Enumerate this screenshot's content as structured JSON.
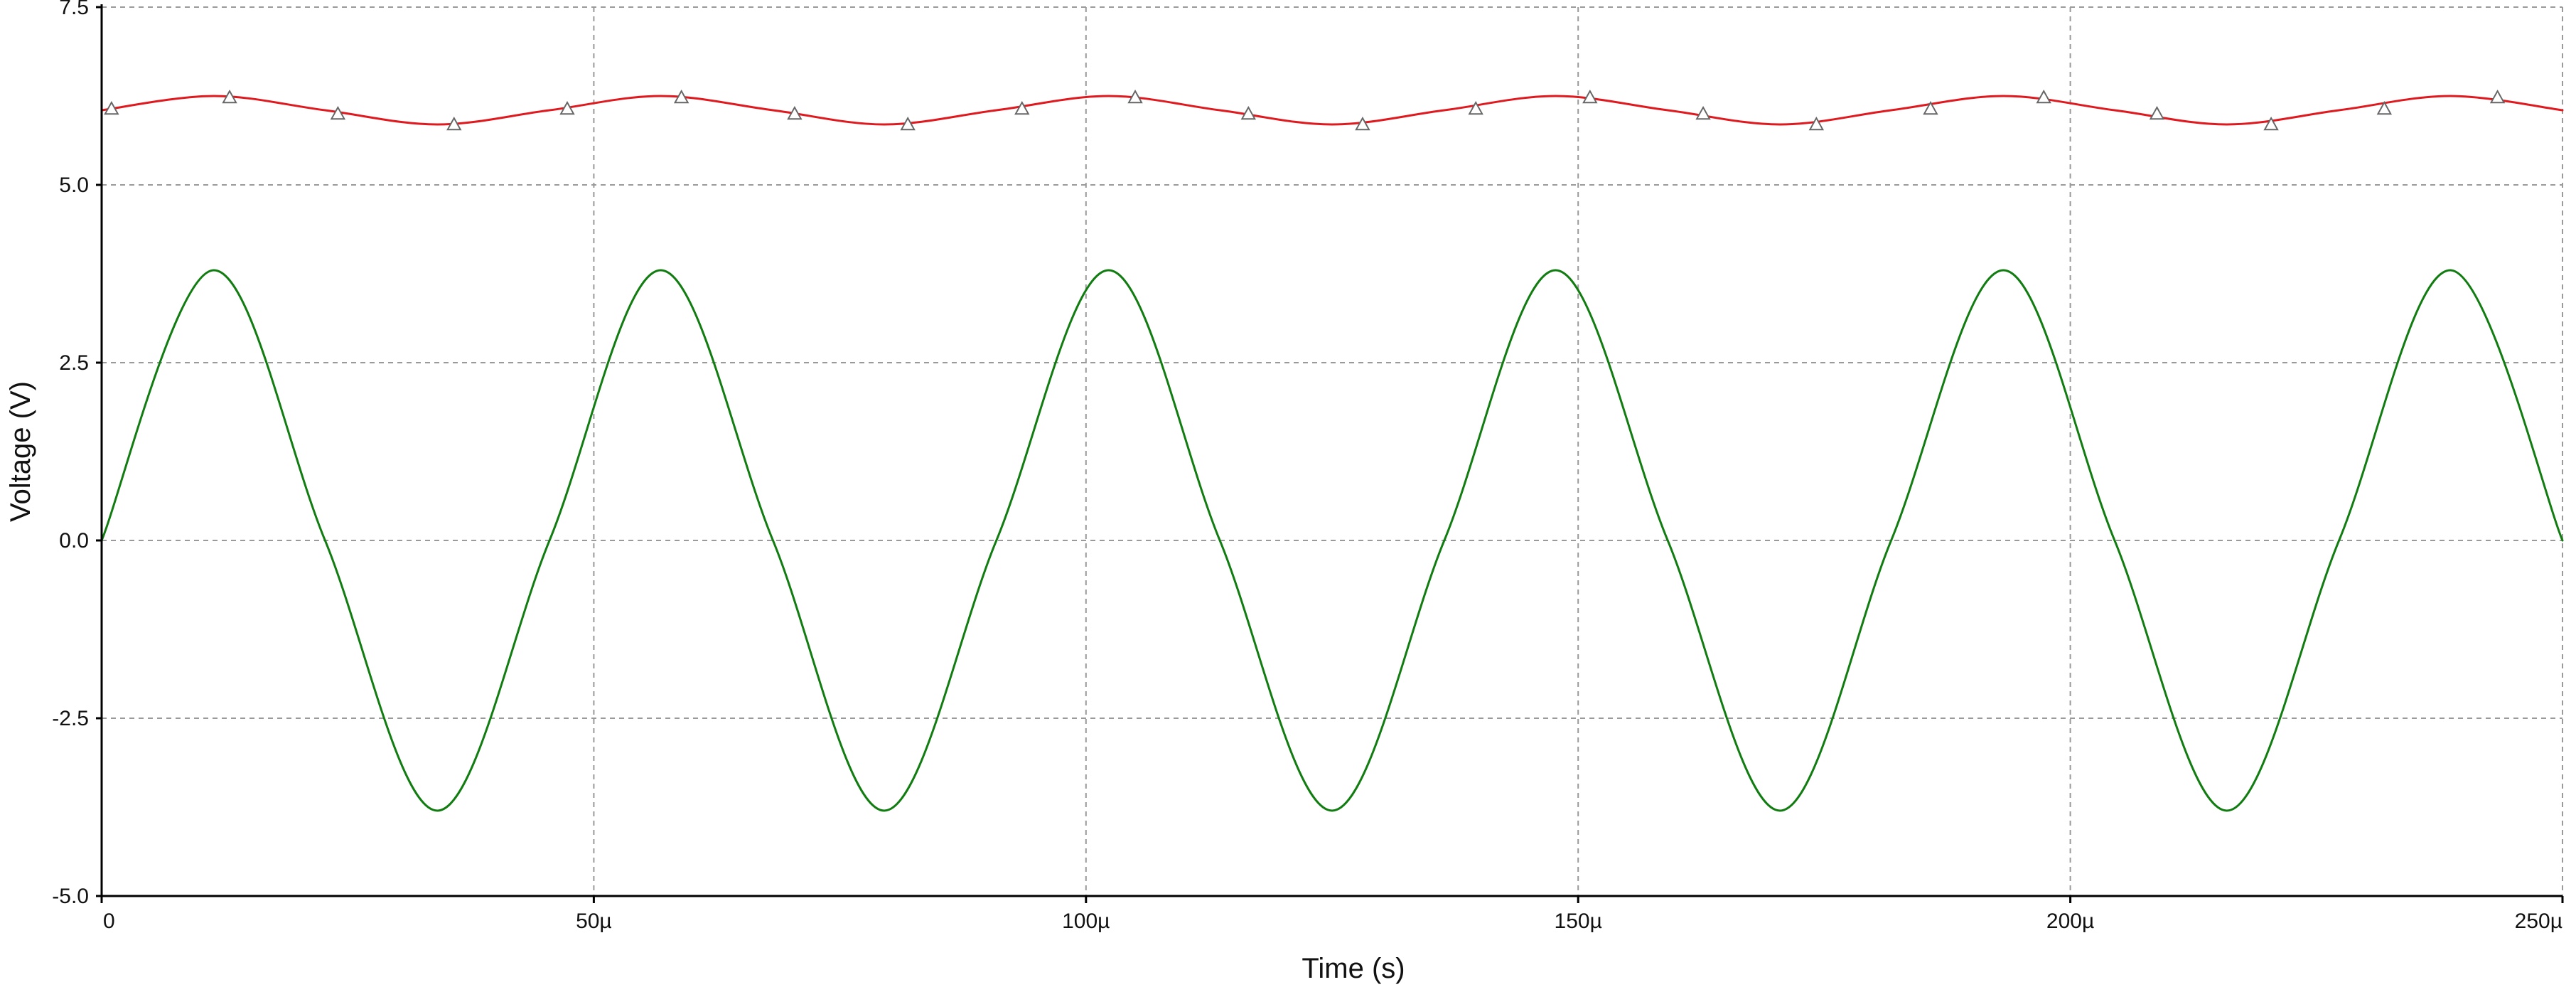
{
  "chart_data": {
    "type": "line",
    "title": "",
    "xlabel": "Time (s)",
    "ylabel": "Voltage (V)",
    "xlim": [
      0,
      0.00025
    ],
    "ylim": [
      -5.0,
      7.5
    ],
    "grid": true,
    "x_ticks": [
      {
        "value": 0,
        "label": "0"
      },
      {
        "value": 5e-05,
        "label": "50µ"
      },
      {
        "value": 0.0001,
        "label": "100µ"
      },
      {
        "value": 0.00015,
        "label": "150µ"
      },
      {
        "value": 0.0002,
        "label": "200µ"
      },
      {
        "value": 0.00025,
        "label": "250µ"
      }
    ],
    "y_ticks": [
      {
        "value": 7.5,
        "label": "7.5"
      },
      {
        "value": 5.0,
        "label": "5.0"
      },
      {
        "value": 2.5,
        "label": "2.5"
      },
      {
        "value": 0.0,
        "label": "0.0"
      },
      {
        "value": -2.5,
        "label": "-2.5"
      },
      {
        "value": -5.0,
        "label": "-5.0"
      }
    ],
    "series": [
      {
        "color": "#e0191f",
        "marker": "triangle",
        "x": [
          0,
          1.14e-05,
          2.27e-05,
          3.41e-05,
          4.55e-05,
          5.68e-05,
          6.82e-05,
          7.95e-05,
          9.09e-05,
          0.0001023,
          0.0001136,
          0.000125,
          0.0001364,
          0.0001477,
          0.0001591,
          0.0001705,
          0.0001818,
          0.0001932,
          0.0002045,
          0.0002159,
          0.0002273,
          0.0002386,
          0.00025
        ],
        "y": [
          6.05,
          6.25,
          6.05,
          5.85,
          6.05,
          6.25,
          6.05,
          5.85,
          6.05,
          6.25,
          6.05,
          5.85,
          6.05,
          6.25,
          6.05,
          5.85,
          6.05,
          6.25,
          6.05,
          5.85,
          6.05,
          6.25,
          6.05
        ],
        "markers": [
          {
            "x": 1e-06,
            "y": 6.07
          },
          {
            "x": 1.3e-05,
            "y": 6.23
          },
          {
            "x": 2.4e-05,
            "y": 6.0
          },
          {
            "x": 3.58e-05,
            "y": 5.85
          },
          {
            "x": 4.73e-05,
            "y": 6.07
          },
          {
            "x": 5.89e-05,
            "y": 6.23
          },
          {
            "x": 7.04e-05,
            "y": 6.0
          },
          {
            "x": 8.19e-05,
            "y": 5.85
          },
          {
            "x": 9.35e-05,
            "y": 6.07
          },
          {
            "x": 0.000105,
            "y": 6.23
          },
          {
            "x": 0.0001165,
            "y": 6.0
          },
          {
            "x": 0.0001281,
            "y": 5.85
          },
          {
            "x": 0.0001396,
            "y": 6.07
          },
          {
            "x": 0.0001512,
            "y": 6.23
          },
          {
            "x": 0.0001627,
            "y": 6.0
          },
          {
            "x": 0.0001742,
            "y": 5.85
          },
          {
            "x": 0.0001858,
            "y": 6.07
          },
          {
            "x": 0.0001973,
            "y": 6.23
          },
          {
            "x": 0.0002088,
            "y": 6.0
          },
          {
            "x": 0.0002204,
            "y": 5.85
          },
          {
            "x": 0.0002319,
            "y": 6.07
          },
          {
            "x": 0.0002434,
            "y": 6.23
          }
        ]
      },
      {
        "color": "#117d11",
        "marker": "none",
        "x": [
          0,
          1.14e-05,
          2.27e-05,
          3.41e-05,
          4.55e-05,
          5.68e-05,
          6.82e-05,
          7.95e-05,
          9.09e-05,
          0.0001023,
          0.0001136,
          0.000125,
          0.0001364,
          0.0001477,
          0.0001591,
          0.0001705,
          0.0001818,
          0.0001932,
          0.0002045,
          0.0002159,
          0.0002273,
          0.0002386,
          0.00025
        ],
        "y": [
          0,
          3.8,
          0,
          -3.8,
          0,
          3.8,
          0,
          -3.8,
          0,
          3.8,
          0,
          -3.8,
          0,
          3.8,
          0,
          -3.8,
          0,
          3.8,
          0,
          -3.8,
          0,
          3.8,
          0
        ],
        "markers": []
      }
    ]
  }
}
